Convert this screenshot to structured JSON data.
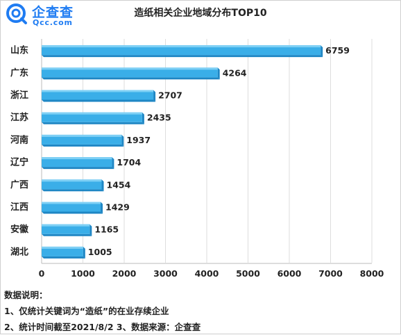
{
  "brand": {
    "name_cn": "企查查",
    "name_en": "Qcc.com",
    "color": "#1f7cf2"
  },
  "chart_data": {
    "type": "bar",
    "orientation": "horizontal",
    "title": "造纸相关企业地域分布TOP10",
    "categories": [
      "山东",
      "广东",
      "浙江",
      "江苏",
      "河南",
      "辽宁",
      "广西",
      "江西",
      "安徽",
      "湖北"
    ],
    "values": [
      6759,
      4264,
      2707,
      2435,
      1937,
      1704,
      1454,
      1429,
      1165,
      1005
    ],
    "xlim": [
      0,
      8000
    ],
    "xticks": [
      0,
      1000,
      2000,
      3000,
      4000,
      5000,
      6000,
      7000,
      8000
    ],
    "grid": true,
    "bar_color": "#3aaee8",
    "bar_shade_color": "#1e86c4",
    "data_labels": true
  },
  "notes": {
    "heading": "数据说明：",
    "line1": "1、仅统计关键词为“造纸”的在业存续企业",
    "line2": "2、统计时间截至2021/8/2   3、数据来源：企查查"
  }
}
